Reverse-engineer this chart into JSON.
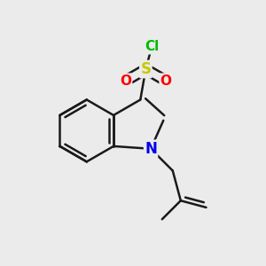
{
  "background_color": "#ebebeb",
  "bond_color": "#1a1a1a",
  "bond_width": 1.8,
  "atom_colors": {
    "S": "#c8c800",
    "O": "#ff0000",
    "N": "#0000ee",
    "Cl": "#00bb00",
    "C": "#1a1a1a"
  },
  "fig_width": 3.0,
  "fig_height": 3.0,
  "dpi": 100
}
